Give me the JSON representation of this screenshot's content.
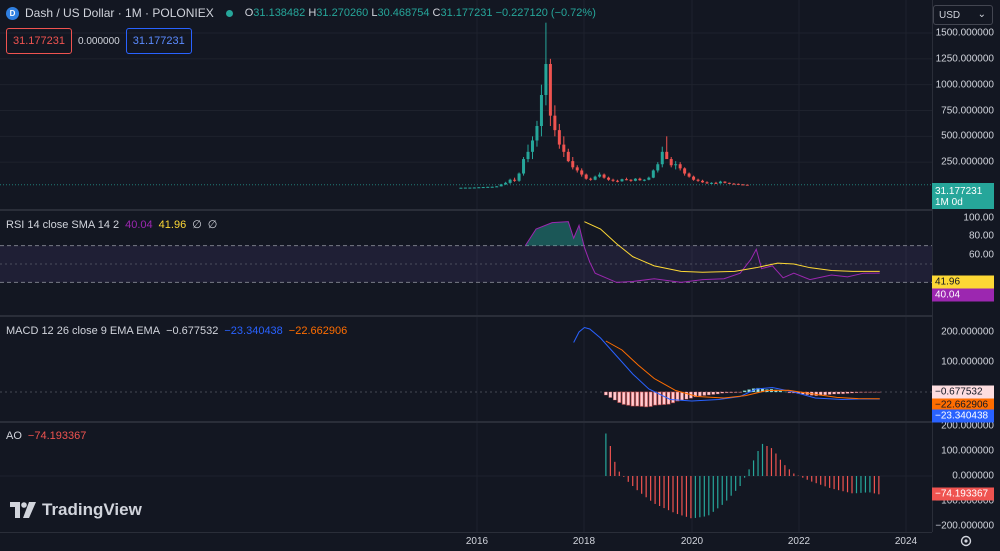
{
  "header": {
    "symbol": "Dash / US Dollar · 1M · POLONIEX",
    "ohlc": {
      "open_label": "O",
      "open": "31.138482",
      "high_label": "H",
      "high": "31.270260",
      "low_label": "L",
      "low": "30.468754",
      "close_label": "C",
      "close": "31.177231",
      "change": "−0.227120 (−0.72%)"
    },
    "sell_price": "31.177231",
    "spread": "0.000000",
    "buy_price": "31.177231",
    "currency": "USD"
  },
  "price_pane": {
    "scale_labels": [
      "1500.000000",
      "1250.000000",
      "1000.000000",
      "750.000000",
      "500.000000",
      "250.000000"
    ],
    "last_tag": "31.177231",
    "last_tag_sub": "1M 0d"
  },
  "rsi_pane": {
    "title": "RSI 14 close SMA 14 2",
    "value1": "40.04",
    "value2": "41.96",
    "value3": "∅",
    "value4": "∅",
    "scale_labels": [
      "100.00",
      "80.00",
      "60.00"
    ],
    "tag_sma": "41.96",
    "tag_rsi": "40.04"
  },
  "macd_pane": {
    "title": "MACD 12 26 close 9 EMA EMA",
    "value1": "−0.677532",
    "value2": "−23.340438",
    "value3": "−22.662906",
    "scale_labels": [
      "200.000000",
      "100.000000"
    ],
    "tag_hist": "−0.677532",
    "tag_signal": "−22.662906",
    "tag_macd": "−23.340438"
  },
  "ao_pane": {
    "title": "AO",
    "value": "−74.193367",
    "scale_labels": [
      "200.000000",
      "100.000000",
      "0.000000",
      "−100.000000",
      "−200.000000"
    ],
    "tag": "−74.193367"
  },
  "time_axis": {
    "labels": [
      "2016",
      "2018",
      "2020",
      "2022",
      "2024"
    ]
  },
  "branding": {
    "name": "TradingView"
  },
  "colors": {
    "background": "#131722",
    "up": "#26a69a",
    "down": "#ef5350",
    "rsi": "#9c27b0",
    "rsi_sma": "#fdd835",
    "macd": "#2962ff",
    "signal": "#ff6d00",
    "last_price": "#26a69a"
  }
}
